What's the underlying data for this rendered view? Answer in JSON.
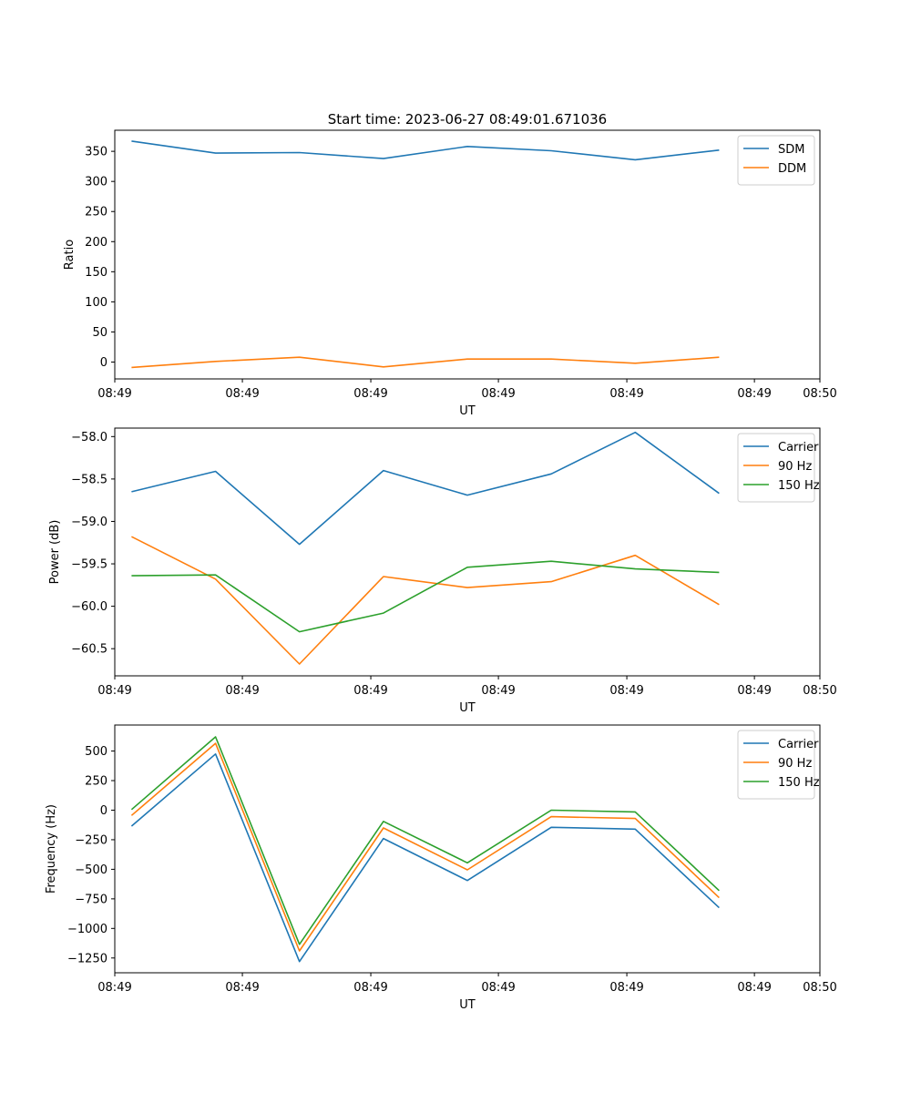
{
  "figure": {
    "title": "Start time: 2023-06-27 08:49:01.671036"
  },
  "colors": {
    "series_1": "#1f77b4",
    "series_2": "#ff7f0e",
    "series_3": "#2ca02c",
    "axes": "#000000",
    "legend_border": "#cccccc"
  },
  "chart_data": [
    {
      "type": "line",
      "title": "Start time: 2023-06-27 08:49:01.671036",
      "xlabel": "UT",
      "ylabel": "Ratio",
      "x": [
        1,
        2,
        3,
        4,
        5,
        6,
        7,
        8
      ],
      "xlim": [
        0.8,
        9.2
      ],
      "xticks": [
        {
          "value": 0.8,
          "label": "08:49"
        },
        {
          "value": 2.32,
          "label": "08:49"
        },
        {
          "value": 3.85,
          "label": "08:49"
        },
        {
          "value": 5.37,
          "label": "08:49"
        },
        {
          "value": 6.9,
          "label": "08:49"
        },
        {
          "value": 8.42,
          "label": "08:49"
        },
        {
          "value": 9.2,
          "label": "08:50"
        }
      ],
      "ylim": [
        -28,
        385
      ],
      "yticks": [
        0,
        50,
        100,
        150,
        200,
        250,
        300,
        350
      ],
      "ytick_labels": [
        "0",
        "50",
        "100",
        "150",
        "200",
        "250",
        "300",
        "350"
      ],
      "grid": false,
      "legend": "top-right",
      "series": [
        {
          "name": "SDM",
          "color": "#1f77b4",
          "values": [
            367,
            347,
            348,
            338,
            358,
            351,
            336,
            352
          ]
        },
        {
          "name": "DDM",
          "color": "#ff7f0e",
          "values": [
            -9,
            1,
            8,
            -8,
            5,
            5,
            -2,
            8
          ]
        }
      ]
    },
    {
      "type": "line",
      "xlabel": "UT",
      "ylabel": "Power (dB)",
      "x": [
        1,
        2,
        3,
        4,
        5,
        6,
        7,
        8
      ],
      "xlim": [
        0.8,
        9.2
      ],
      "xticks": [
        {
          "value": 0.8,
          "label": "08:49"
        },
        {
          "value": 2.32,
          "label": "08:49"
        },
        {
          "value": 3.85,
          "label": "08:49"
        },
        {
          "value": 5.37,
          "label": "08:49"
        },
        {
          "value": 6.9,
          "label": "08:49"
        },
        {
          "value": 8.42,
          "label": "08:49"
        },
        {
          "value": 9.2,
          "label": "08:50"
        }
      ],
      "ylim": [
        -60.82,
        -57.9
      ],
      "yticks": [
        -60.5,
        -60.0,
        -59.5,
        -59.0,
        -58.5,
        -58.0
      ],
      "ytick_labels": [
        "−60.5",
        "−60.0",
        "−59.5",
        "−59.0",
        "−58.5",
        "−58.0"
      ],
      "grid": false,
      "legend": "top-right",
      "series": [
        {
          "name": "Carrier",
          "color": "#1f77b4",
          "values": [
            -58.65,
            -58.41,
            -59.27,
            -58.4,
            -58.69,
            -58.44,
            -57.95,
            -58.67
          ]
        },
        {
          "name": "90 Hz",
          "color": "#ff7f0e",
          "values": [
            -59.18,
            -59.68,
            -60.68,
            -59.65,
            -59.78,
            -59.71,
            -59.4,
            -59.98
          ]
        },
        {
          "name": "150 Hz",
          "color": "#2ca02c",
          "values": [
            -59.64,
            -59.63,
            -60.3,
            -60.08,
            -59.54,
            -59.47,
            -59.56,
            -59.6
          ]
        }
      ]
    },
    {
      "type": "line",
      "xlabel": "UT",
      "ylabel": "Frequency (Hz)",
      "x": [
        1,
        2,
        3,
        4,
        5,
        6,
        7,
        8
      ],
      "xlim": [
        0.8,
        9.2
      ],
      "xticks": [
        {
          "value": 0.8,
          "label": "08:49"
        },
        {
          "value": 2.32,
          "label": "08:49"
        },
        {
          "value": 3.85,
          "label": "08:49"
        },
        {
          "value": 5.37,
          "label": "08:49"
        },
        {
          "value": 6.9,
          "label": "08:49"
        },
        {
          "value": 8.42,
          "label": "08:49"
        },
        {
          "value": 9.2,
          "label": "08:50"
        }
      ],
      "ylim": [
        -1375,
        720
      ],
      "yticks": [
        -1250,
        -1000,
        -750,
        -500,
        -250,
        0,
        250,
        500
      ],
      "ytick_labels": [
        "−1250",
        "−1000",
        "−750",
        "−500",
        "−250",
        "0",
        "250",
        "500"
      ],
      "grid": false,
      "legend": "top-right",
      "series": [
        {
          "name": "Carrier",
          "color": "#1f77b4",
          "values": [
            -135,
            475,
            -1280,
            -240,
            -595,
            -145,
            -160,
            -825
          ]
        },
        {
          "name": "90 Hz",
          "color": "#ff7f0e",
          "values": [
            -45,
            565,
            -1190,
            -150,
            -505,
            -55,
            -70,
            -740
          ]
        },
        {
          "name": "150 Hz",
          "color": "#2ca02c",
          "values": [
            5,
            620,
            -1135,
            -95,
            -445,
            0,
            -15,
            -680
          ]
        }
      ]
    }
  ]
}
